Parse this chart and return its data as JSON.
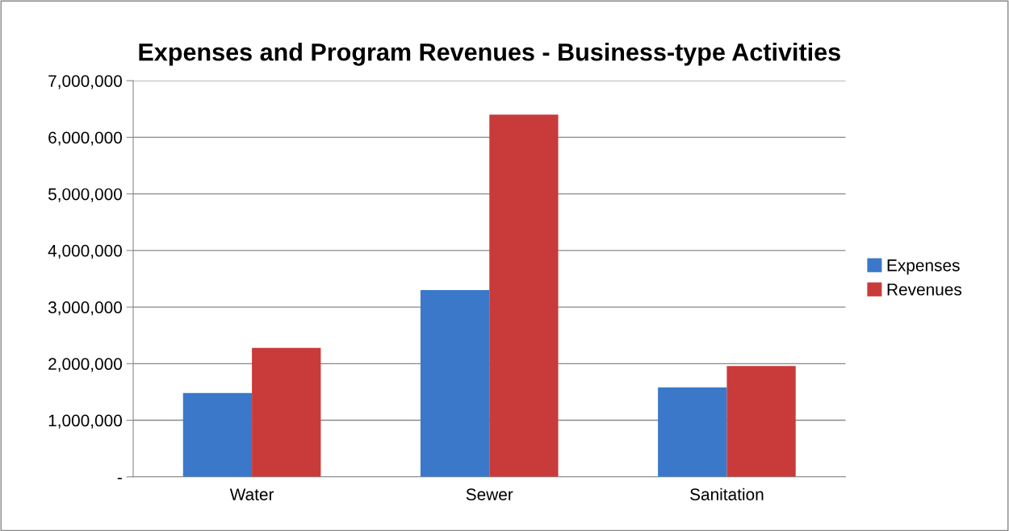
{
  "chart_data": {
    "type": "bar",
    "title": "Expenses and Program Revenues - Business-type Activities",
    "categories": [
      "Water",
      "Sewer",
      "Sanitation"
    ],
    "series": [
      {
        "name": "Expenses",
        "color": "#3b78c9",
        "values": [
          1480000,
          3300000,
          1580000
        ]
      },
      {
        "name": "Revenues",
        "color": "#c83b3a",
        "values": [
          2280000,
          6400000,
          1960000
        ]
      }
    ],
    "ylim": [
      0,
      7000000
    ],
    "yticks": [
      {
        "value": 0,
        "label": "-"
      },
      {
        "value": 1000000,
        "label": "1,000,000"
      },
      {
        "value": 2000000,
        "label": "2,000,000"
      },
      {
        "value": 3000000,
        "label": "3,000,000"
      },
      {
        "value": 4000000,
        "label": "4,000,000"
      },
      {
        "value": 5000000,
        "label": "5,000,000"
      },
      {
        "value": 6000000,
        "label": "6,000,000"
      },
      {
        "value": 7000000,
        "label": "7,000,000"
      }
    ],
    "grid": "y",
    "legend": "right"
  }
}
